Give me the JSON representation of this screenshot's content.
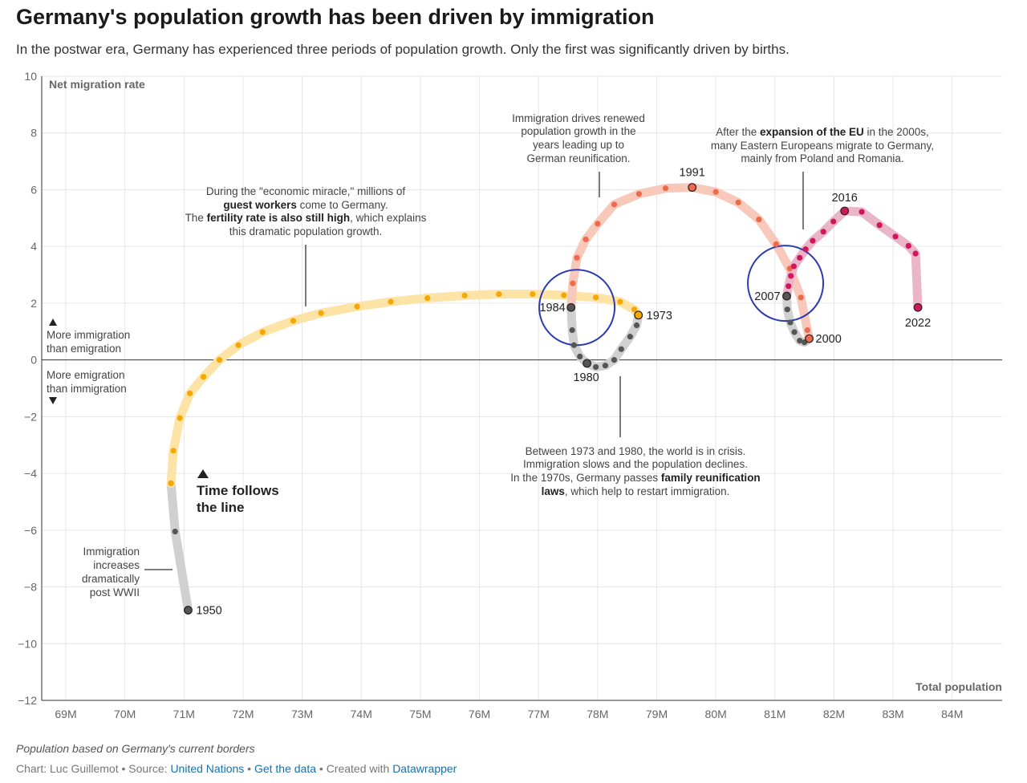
{
  "title": "Germany's population growth has been driven by immigration",
  "subtitle": "In the postwar era, Germany has experienced three periods of population growth. Only the first was significantly driven by births.",
  "notes": "Population based on Germany's current borders",
  "byline": {
    "prefix": "Chart: Luc Guillemot • Source: ",
    "source": "United Nations",
    "sep": " • ",
    "get_data": "Get the data",
    "created": " • Created with ",
    "tool": "Datawrapper"
  },
  "chart_data": {
    "type": "scatter",
    "xlabel": "Total population",
    "ylabel": "Net migration rate",
    "xlim": [
      68.6,
      84.9
    ],
    "ylim": [
      -12,
      10
    ],
    "x_ticks": [
      69,
      70,
      71,
      72,
      73,
      74,
      75,
      76,
      77,
      78,
      79,
      80,
      81,
      82,
      83,
      84
    ],
    "x_tick_labels": [
      "69M",
      "70M",
      "71M",
      "72M",
      "73M",
      "74M",
      "75M",
      "76M",
      "77M",
      "78M",
      "79M",
      "80M",
      "81M",
      "82M",
      "83M",
      "84M"
    ],
    "y_ticks": [
      10,
      8,
      6,
      4,
      2,
      0,
      -2,
      -4,
      -6,
      -8,
      -10,
      -12
    ],
    "y_tick_labels": [
      "10",
      "8",
      "6",
      "4",
      "2",
      "0",
      "−2",
      "−4",
      "−6",
      "−8",
      "−10",
      "−12"
    ],
    "grid": true,
    "colors": {
      "gray": "#555555",
      "gray_line": "#d0d0d0",
      "yellow": "#f7a800",
      "yellow_line": "#fde3a6",
      "salmon": "#ef6a4a",
      "salmon_line": "#f8c9bb",
      "crimson": "#d0175b",
      "crimson_line": "#ebb5c8",
      "circle": "#2d3ab0"
    },
    "series": [
      {
        "color": "gray",
        "points": [
          [
            71.07,
            -8.82
          ],
          [
            70.85,
            -6.05
          ],
          [
            70.78,
            -4.35
          ]
        ]
      },
      {
        "color": "yellow",
        "points": [
          [
            70.78,
            -4.35
          ],
          [
            70.82,
            -3.2
          ],
          [
            70.93,
            -2.05
          ],
          [
            71.1,
            -1.18
          ],
          [
            71.33,
            -0.6
          ],
          [
            71.6,
            0.0
          ],
          [
            71.92,
            0.52
          ],
          [
            72.33,
            0.98
          ],
          [
            72.85,
            1.38
          ],
          [
            73.32,
            1.65
          ],
          [
            73.93,
            1.88
          ],
          [
            74.5,
            2.05
          ],
          [
            75.12,
            2.18
          ],
          [
            75.75,
            2.27
          ],
          [
            76.33,
            2.32
          ],
          [
            76.9,
            2.32
          ],
          [
            77.43,
            2.28
          ],
          [
            77.97,
            2.2
          ],
          [
            78.38,
            2.05
          ],
          [
            78.62,
            1.78
          ],
          [
            78.69,
            1.58
          ]
        ]
      },
      {
        "color": "gray",
        "points": [
          [
            78.69,
            1.58
          ],
          [
            78.66,
            1.22
          ],
          [
            78.55,
            0.82
          ],
          [
            78.4,
            0.38
          ],
          [
            78.28,
            0.0
          ],
          [
            78.13,
            -0.2
          ],
          [
            77.97,
            -0.25
          ],
          [
            77.82,
            -0.12
          ],
          [
            77.7,
            0.12
          ],
          [
            77.6,
            0.52
          ],
          [
            77.57,
            1.05
          ],
          [
            77.55,
            1.85
          ]
        ]
      },
      {
        "color": "salmon",
        "points": [
          [
            77.55,
            1.85
          ],
          [
            77.58,
            2.7
          ],
          [
            77.65,
            3.6
          ],
          [
            77.8,
            4.25
          ],
          [
            78.0,
            4.8
          ],
          [
            78.28,
            5.48
          ],
          [
            78.7,
            5.85
          ],
          [
            79.15,
            6.05
          ],
          [
            79.6,
            6.08
          ],
          [
            80.0,
            5.92
          ],
          [
            80.38,
            5.55
          ],
          [
            80.73,
            4.95
          ],
          [
            81.02,
            4.08
          ],
          [
            81.25,
            3.22
          ],
          [
            81.44,
            2.2
          ],
          [
            81.55,
            1.05
          ],
          [
            81.58,
            0.75
          ]
        ]
      },
      {
        "color": "gray",
        "points": [
          [
            81.58,
            0.75
          ],
          [
            81.5,
            0.62
          ],
          [
            81.42,
            0.68
          ],
          [
            81.33,
            0.98
          ],
          [
            81.26,
            1.32
          ],
          [
            81.21,
            1.78
          ],
          [
            81.2,
            2.25
          ]
        ]
      },
      {
        "color": "crimson",
        "points": [
          [
            81.2,
            2.25
          ],
          [
            81.23,
            2.6
          ],
          [
            81.27,
            2.96
          ],
          [
            81.32,
            3.3
          ],
          [
            81.42,
            3.6
          ],
          [
            81.52,
            3.9
          ],
          [
            81.64,
            4.2
          ],
          [
            81.82,
            4.52
          ],
          [
            81.99,
            4.88
          ],
          [
            82.18,
            5.25
          ],
          [
            82.47,
            5.22
          ],
          [
            82.77,
            4.75
          ],
          [
            83.04,
            4.35
          ],
          [
            83.26,
            4.02
          ],
          [
            83.38,
            3.75
          ],
          [
            83.42,
            1.85
          ]
        ]
      }
    ],
    "year_labels": [
      {
        "label": "1950",
        "x": 71.07,
        "y": -8.82,
        "color": "gray"
      },
      {
        "label": "1973",
        "x": 78.69,
        "y": 1.58,
        "color": "yellow"
      },
      {
        "label": "1980",
        "x": 77.82,
        "y": -0.12,
        "color": "gray"
      },
      {
        "label": "1984",
        "x": 77.55,
        "y": 1.85,
        "color": "gray"
      },
      {
        "label": "1991",
        "x": 79.6,
        "y": 6.08,
        "color": "salmon"
      },
      {
        "label": "2000",
        "x": 81.58,
        "y": 0.75,
        "color": "salmon"
      },
      {
        "label": "2007",
        "x": 81.2,
        "y": 2.25,
        "color": "gray"
      },
      {
        "label": "2016",
        "x": 82.18,
        "y": 5.25,
        "color": "crimson"
      },
      {
        "label": "2022",
        "x": 83.42,
        "y": 1.85,
        "color": "crimson"
      }
    ],
    "highlight_circles": [
      {
        "x": 77.65,
        "y": 1.85
      },
      {
        "x": 81.18,
        "y": 2.7
      }
    ],
    "annotations": {
      "more_immigration": [
        "More immigration",
        "than emigration"
      ],
      "more_emigration": [
        "More emigration",
        "than immigration"
      ],
      "time_follows": [
        "Time follows",
        "the line"
      ],
      "postwar": [
        "Immigration",
        "increases",
        "dramatically",
        "post WWII"
      ],
      "miracle": {
        "line1": "During the \"economic miracle,\" millions of",
        "line2_b": "guest workers",
        "line2": " come to Germany.",
        "line3_a": "The ",
        "line3_b": "fertility rate is also still high",
        "line3_c": ", which explains",
        "line4": "this dramatic population growth."
      },
      "reunification": [
        "Immigration drives renewed",
        "population growth in the",
        "years leading up to",
        "German reunification."
      ],
      "eu": {
        "line1_a": "After the ",
        "line1_b": "expansion of the EU",
        "line1_c": " in the 2000s,",
        "line2": "many Eastern Europeans migrate to Germany,",
        "line3": "mainly from Poland and Romania."
      },
      "crisis": {
        "line1": "Between 1973 and 1980, the world is in crisis.",
        "line2": "Immigration slows and the population declines.",
        "line3_a": "In the 1970s, Germany passes ",
        "line3_b": "family reunification",
        "line4_b": "laws",
        "line4": ", which help to restart immigration."
      }
    }
  }
}
